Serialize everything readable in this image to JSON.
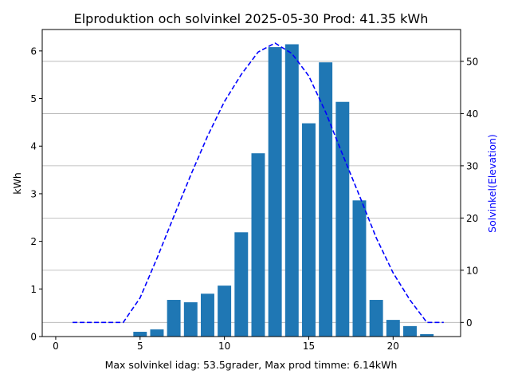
{
  "chart_data": {
    "type": "bar",
    "title": "Elproduktion och solvinkel 2025-05-30 Prod: 41.35 kWh",
    "xlabel": "Max solvinkel idag: 53.5grader, Max prod timme: 6.14kWh",
    "ylabel": "kWh",
    "y2label": "Solvinkel(Elevation)",
    "xlim": [
      -0.8,
      24.0
    ],
    "ylim": [
      0,
      6.45
    ],
    "y2lim": [
      -2.7,
      56.1
    ],
    "xticks": [
      0,
      5,
      10,
      15,
      20
    ],
    "yticks": [
      0,
      1,
      2,
      3,
      4,
      5,
      6
    ],
    "y2ticks": [
      0,
      10,
      20,
      30,
      40,
      50
    ],
    "grid": "horizontal lines at right-axis ticks",
    "series": [
      {
        "kind": "bar",
        "color": "#1f77b4",
        "x": [
          5,
          6,
          7,
          8,
          9,
          10,
          11,
          12,
          13,
          14,
          15,
          16,
          17,
          18,
          19,
          20,
          21,
          22
        ],
        "values": [
          0.1,
          0.15,
          0.77,
          0.72,
          0.9,
          1.07,
          2.19,
          3.85,
          6.08,
          6.14,
          4.48,
          5.76,
          4.93,
          2.86,
          0.77,
          0.35,
          0.22,
          0.05
        ]
      },
      {
        "kind": "line",
        "axis": "right",
        "style": "dashed",
        "color": "#0000ff",
        "x": [
          1,
          2,
          3,
          4,
          5,
          6,
          7,
          8,
          9,
          10,
          11,
          12,
          13,
          14,
          15,
          16,
          17,
          18,
          19,
          20,
          21,
          22,
          23
        ],
        "values": [
          0,
          0,
          0,
          0,
          4.7,
          12.3,
          20.3,
          28.2,
          35.7,
          42.3,
          47.5,
          51.8,
          53.5,
          51.5,
          47.2,
          40.3,
          32.2,
          24.3,
          16.2,
          9.5,
          4.3,
          0,
          0
        ]
      }
    ]
  }
}
